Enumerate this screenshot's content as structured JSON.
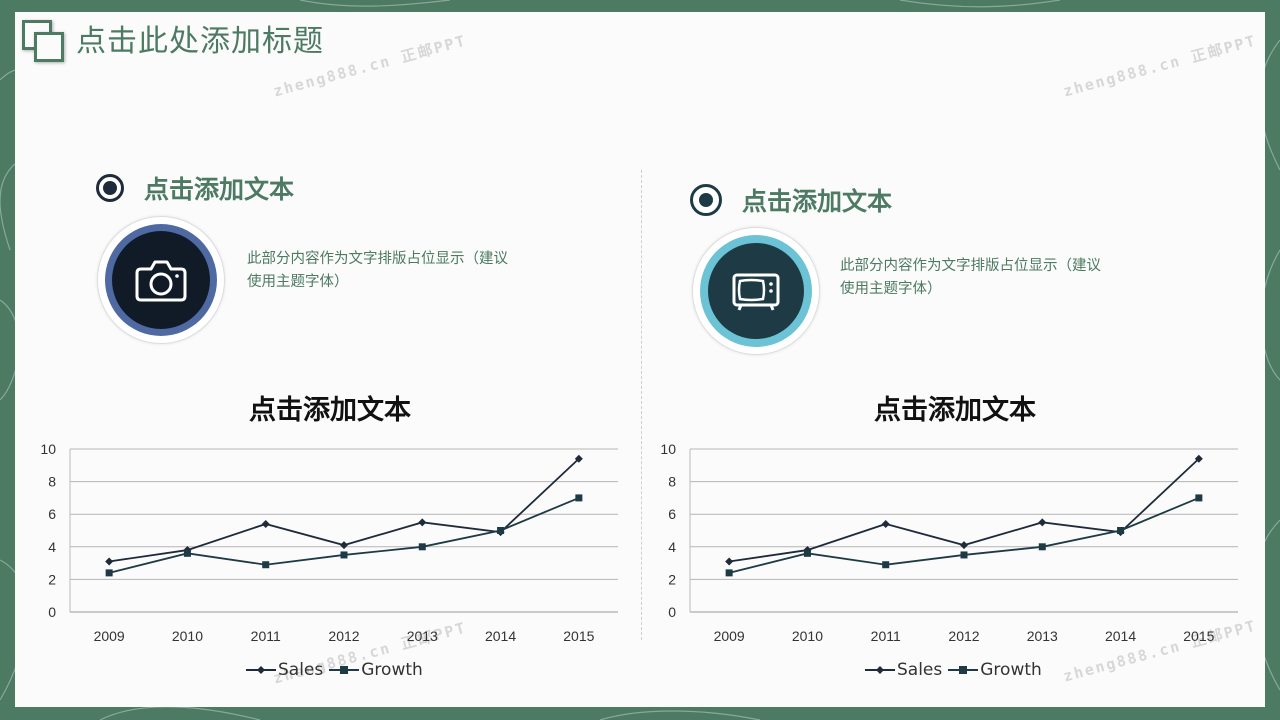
{
  "page": {
    "title": "点击此处添加标题"
  },
  "watermark": {
    "text": "zheng888.cn 正邮PPT"
  },
  "colors": {
    "accent": "#4c7a63",
    "navy": "#1f2b3a",
    "teal": "#1e3b45",
    "blue_ring": "#4f6aa3",
    "cyan_ring": "#6cc3d5"
  },
  "left": {
    "heading": "点击添加文本",
    "icon": "camera-icon",
    "desc_line1": "此部分内容作为文字排版占位显示（建议",
    "desc_line2": "使用主题字体）",
    "chart_title": "点击添加文本"
  },
  "right": {
    "heading": "点击添加文本",
    "icon": "tv-icon",
    "desc_line1": "此部分内容作为文字排版占位显示（建议",
    "desc_line2": "使用主题字体）",
    "chart_title": "点击添加文本"
  },
  "chart_data": [
    {
      "type": "line",
      "title": "点击添加文本",
      "x": [
        "2009",
        "2010",
        "2011",
        "2012",
        "2013",
        "2014",
        "2015"
      ],
      "ylim": [
        0,
        10
      ],
      "yticks": [
        "0",
        "2",
        "4",
        "6",
        "8",
        "10"
      ],
      "grid": true,
      "legend": "bottom",
      "series": [
        {
          "name": "Sales",
          "values": [
            3.1,
            3.8,
            5.4,
            4.1,
            5.5,
            4.9,
            9.4
          ],
          "marker": "diamond",
          "color": "#1f2b3a"
        },
        {
          "name": "Growth",
          "values": [
            2.4,
            3.6,
            2.9,
            3.5,
            4.0,
            5.0,
            7.0
          ],
          "marker": "square",
          "color": "#1e3b45"
        }
      ]
    },
    {
      "type": "line",
      "title": "点击添加文本",
      "x": [
        "2009",
        "2010",
        "2011",
        "2012",
        "2013",
        "2014",
        "2015"
      ],
      "ylim": [
        0,
        10
      ],
      "yticks": [
        "0",
        "2",
        "4",
        "6",
        "8",
        "10"
      ],
      "grid": true,
      "legend": "bottom",
      "series": [
        {
          "name": "Sales",
          "values": [
            3.1,
            3.8,
            5.4,
            4.1,
            5.5,
            4.9,
            9.4
          ],
          "marker": "diamond",
          "color": "#1f2b3a"
        },
        {
          "name": "Growth",
          "values": [
            2.4,
            3.6,
            2.9,
            3.5,
            4.0,
            5.0,
            7.0
          ],
          "marker": "square",
          "color": "#1e3b45"
        }
      ]
    }
  ]
}
